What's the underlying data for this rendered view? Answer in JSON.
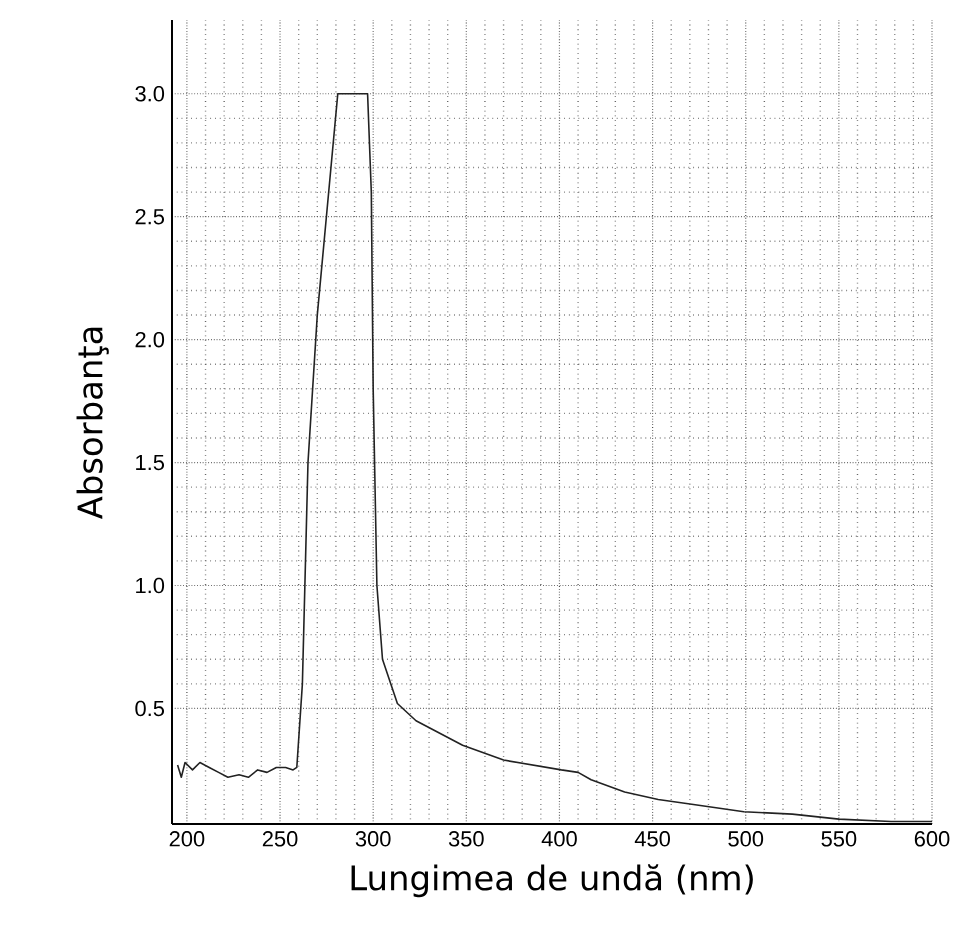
{
  "chart_data": {
    "type": "line",
    "xlabel": "Lungimea de undă (nm)",
    "ylabel": "Absorbanţa",
    "x": [
      195,
      197,
      199,
      203,
      207,
      212,
      217,
      222,
      228,
      233,
      238,
      243,
      248,
      253,
      257,
      259,
      262,
      265,
      270,
      281,
      297,
      299,
      300,
      302,
      305,
      313,
      323,
      348,
      370,
      401,
      410,
      417,
      435,
      453,
      471,
      499,
      525,
      550,
      578,
      600
    ],
    "series": [
      {
        "color": "#222222",
        "values": [
          0.27,
          0.22,
          0.28,
          0.25,
          0.28,
          0.26,
          0.24,
          0.22,
          0.23,
          0.22,
          0.25,
          0.24,
          0.26,
          0.26,
          0.25,
          0.26,
          0.6,
          1.5,
          2.1,
          3.0,
          3.0,
          2.6,
          1.8,
          1.0,
          0.7,
          0.52,
          0.45,
          0.35,
          0.29,
          0.25,
          0.24,
          0.21,
          0.16,
          0.13,
          0.11,
          0.08,
          0.07,
          0.05,
          0.04,
          0.04
        ]
      }
    ],
    "xlim": [
      192,
      600
    ],
    "ylim": [
      0.03,
      3.3
    ],
    "xticks": [
      200,
      250,
      300,
      350,
      400,
      450,
      500,
      550,
      600
    ],
    "yticks": [
      0.5,
      {
        "value": 1,
        "label": "1.0"
      },
      1.5,
      {
        "value": 2,
        "label": "2.0"
      },
      2.5,
      {
        "value": 3,
        "label": "3.0"
      }
    ],
    "grid": true,
    "marker": "none",
    "line_style": "solid"
  }
}
